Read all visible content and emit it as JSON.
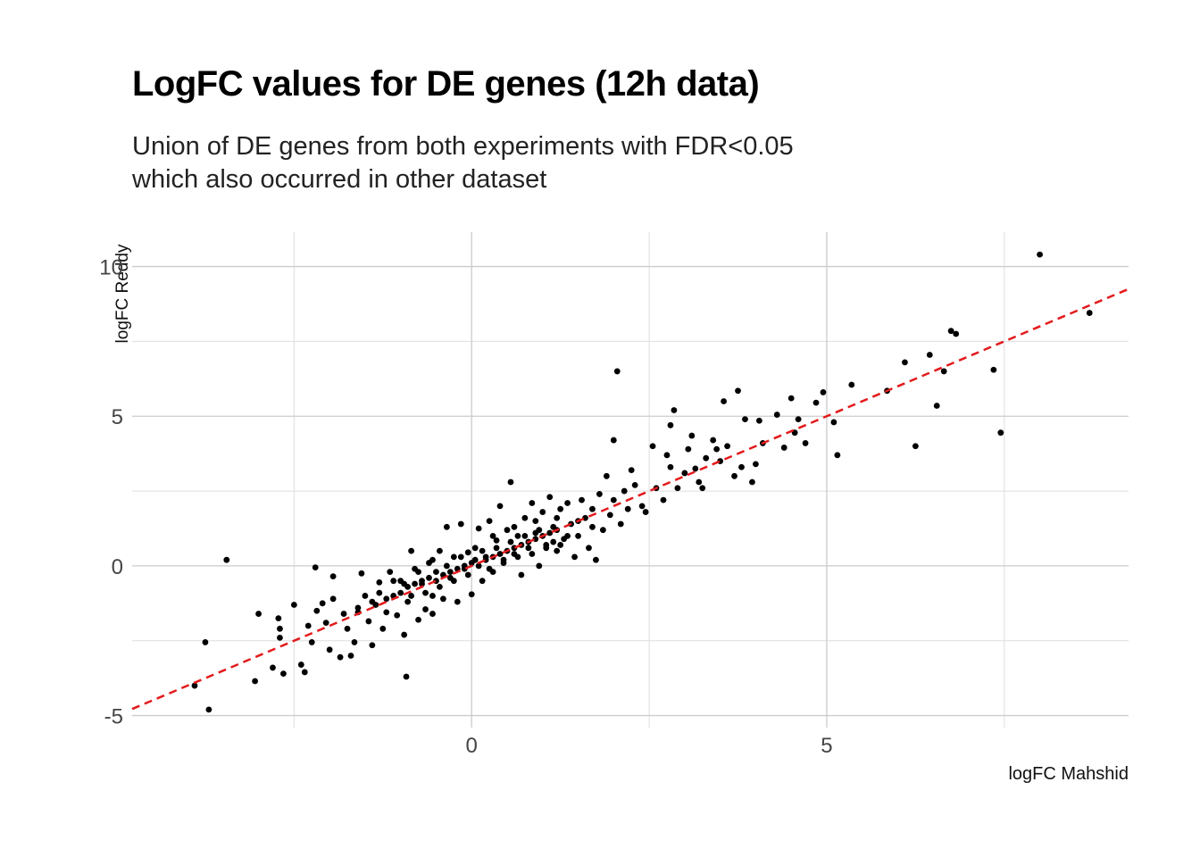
{
  "chart_data": {
    "type": "scatter",
    "title": "LogFC values for DE genes (12h data)",
    "subtitle": [
      "Union of DE genes from both experiments with FDR<0.05",
      "which also occurred in other dataset"
    ],
    "xlabel": "logFC Mahshid",
    "ylabel": "logFC Reddy",
    "xlim": [
      -4.78,
      9.25
    ],
    "ylim": [
      -5.4,
      11.15
    ],
    "x_ticks": [
      0,
      5
    ],
    "x_tick_labels": [
      "0",
      "5"
    ],
    "x_minor_ticks": [
      -2.5,
      2.5,
      7.5
    ],
    "y_ticks": [
      -5,
      0,
      5,
      10
    ],
    "y_tick_labels": [
      "-5",
      "0",
      "5",
      "10"
    ],
    "y_minor_ticks": [
      -2.5,
      2.5,
      7.5
    ],
    "grid": true,
    "legend": "none",
    "reference_line": {
      "slope": 1,
      "intercept": 0,
      "style": "dashed",
      "color": "#e31a1c"
    },
    "point_color": "#000000",
    "points": [
      [
        -3.9,
        -4.0
      ],
      [
        -3.75,
        -2.55
      ],
      [
        -3.7,
        -4.8
      ],
      [
        -3.45,
        0.2
      ],
      [
        -3.05,
        -3.85
      ],
      [
        -3.0,
        -1.6
      ],
      [
        -2.8,
        -3.4
      ],
      [
        -2.72,
        -1.75
      ],
      [
        -2.7,
        -2.1
      ],
      [
        -2.7,
        -2.4
      ],
      [
        -2.65,
        -3.6
      ],
      [
        -2.5,
        -1.3
      ],
      [
        -2.4,
        -3.3
      ],
      [
        -2.35,
        -3.55
      ],
      [
        -2.3,
        -2.0
      ],
      [
        -2.25,
        -2.55
      ],
      [
        -2.2,
        -0.05
      ],
      [
        -2.18,
        -1.5
      ],
      [
        -2.1,
        -1.25
      ],
      [
        -2.05,
        -1.9
      ],
      [
        -2.0,
        -2.8
      ],
      [
        -1.95,
        -1.1
      ],
      [
        -1.95,
        -0.35
      ],
      [
        -1.85,
        -3.05
      ],
      [
        -1.75,
        -2.1
      ],
      [
        -1.7,
        -3.0
      ],
      [
        -1.65,
        -2.55
      ],
      [
        -1.6,
        -1.55
      ],
      [
        -1.55,
        -0.25
      ],
      [
        -1.5,
        -1.0
      ],
      [
        -1.45,
        -1.85
      ],
      [
        -1.4,
        -2.65
      ],
      [
        -1.35,
        -1.3
      ],
      [
        -1.3,
        -0.55
      ],
      [
        -1.25,
        -2.1
      ],
      [
        -1.2,
        -1.55
      ],
      [
        -1.15,
        -0.2
      ],
      [
        -1.1,
        -1.0
      ],
      [
        -1.05,
        -1.65
      ],
      [
        -1.0,
        -0.5
      ],
      [
        -0.95,
        -2.3
      ],
      [
        -0.92,
        -3.7
      ],
      [
        -0.9,
        -1.2
      ],
      [
        -0.85,
        0.5
      ],
      [
        -0.8,
        -0.1
      ],
      [
        -0.75,
        -1.8
      ],
      [
        -0.7,
        -0.6
      ],
      [
        -0.65,
        -1.45
      ],
      [
        -0.6,
        0.1
      ],
      [
        -0.55,
        -1.6
      ],
      [
        -0.5,
        -0.2
      ],
      [
        -0.45,
        0.5
      ],
      [
        -0.4,
        -1.1
      ],
      [
        -0.35,
        1.3
      ],
      [
        -0.3,
        -0.4
      ],
      [
        -0.25,
        0.3
      ],
      [
        -0.2,
        -1.2
      ],
      [
        -0.15,
        1.4
      ],
      [
        -0.1,
        -0.1
      ],
      [
        -0.05,
        0.45
      ],
      [
        0.0,
        -0.95
      ],
      [
        0.05,
        0.6
      ],
      [
        0.1,
        1.25
      ],
      [
        0.15,
        -0.5
      ],
      [
        0.2,
        0.3
      ],
      [
        0.25,
        1.5
      ],
      [
        0.3,
        -0.2
      ],
      [
        0.35,
        0.85
      ],
      [
        0.4,
        2.0
      ],
      [
        0.45,
        0.1
      ],
      [
        0.5,
        1.2
      ],
      [
        0.55,
        2.8
      ],
      [
        0.6,
        0.4
      ],
      [
        0.65,
        1.0
      ],
      [
        0.7,
        -0.3
      ],
      [
        0.75,
        1.6
      ],
      [
        0.8,
        0.6
      ],
      [
        0.85,
        2.1
      ],
      [
        0.9,
        1.1
      ],
      [
        0.95,
        0.0
      ],
      [
        1.0,
        1.8
      ],
      [
        1.05,
        0.7
      ],
      [
        1.1,
        2.3
      ],
      [
        1.15,
        1.3
      ],
      [
        1.2,
        0.5
      ],
      [
        1.25,
        1.9
      ],
      [
        1.3,
        0.9
      ],
      [
        1.35,
        2.1
      ],
      [
        1.4,
        1.4
      ],
      [
        1.45,
        0.3
      ],
      [
        1.5,
        1.0
      ],
      [
        1.55,
        2.2
      ],
      [
        1.6,
        1.6
      ],
      [
        1.65,
        0.6
      ],
      [
        1.7,
        1.9
      ],
      [
        1.75,
        0.2
      ],
      [
        1.8,
        2.4
      ],
      [
        1.85,
        1.2
      ],
      [
        1.9,
        3.0
      ],
      [
        1.95,
        1.7
      ],
      [
        2.0,
        4.2
      ],
      [
        2.0,
        2.2
      ],
      [
        2.05,
        6.5
      ],
      [
        2.1,
        1.4
      ],
      [
        2.15,
        2.5
      ],
      [
        2.2,
        1.9
      ],
      [
        2.25,
        3.2
      ],
      [
        2.3,
        2.7
      ],
      [
        2.4,
        2.0
      ],
      [
        2.45,
        1.8
      ],
      [
        2.55,
        4.0
      ],
      [
        2.6,
        2.6
      ],
      [
        2.7,
        2.2
      ],
      [
        2.75,
        3.7
      ],
      [
        2.8,
        4.7
      ],
      [
        2.8,
        3.3
      ],
      [
        2.85,
        5.2
      ],
      [
        2.9,
        2.6
      ],
      [
        3.0,
        3.1
      ],
      [
        3.05,
        3.9
      ],
      [
        3.1,
        4.35
      ],
      [
        3.15,
        3.25
      ],
      [
        3.2,
        2.8
      ],
      [
        3.25,
        2.6
      ],
      [
        3.3,
        3.6
      ],
      [
        3.4,
        4.2
      ],
      [
        3.45,
        3.9
      ],
      [
        3.5,
        3.5
      ],
      [
        3.55,
        5.5
      ],
      [
        3.6,
        4.0
      ],
      [
        3.7,
        3.0
      ],
      [
        3.75,
        5.85
      ],
      [
        3.8,
        3.3
      ],
      [
        3.85,
        4.9
      ],
      [
        3.95,
        2.8
      ],
      [
        4.0,
        3.4
      ],
      [
        4.05,
        4.85
      ],
      [
        4.1,
        4.1
      ],
      [
        4.3,
        5.05
      ],
      [
        4.4,
        3.95
      ],
      [
        4.5,
        5.6
      ],
      [
        4.55,
        4.45
      ],
      [
        4.6,
        4.9
      ],
      [
        4.7,
        4.1
      ],
      [
        4.85,
        5.45
      ],
      [
        4.95,
        5.8
      ],
      [
        5.1,
        4.8
      ],
      [
        5.15,
        3.7
      ],
      [
        5.35,
        6.05
      ],
      [
        5.85,
        5.85
      ],
      [
        6.1,
        6.8
      ],
      [
        6.25,
        4.0
      ],
      [
        6.45,
        7.05
      ],
      [
        6.55,
        5.35
      ],
      [
        6.65,
        6.5
      ],
      [
        6.75,
        7.85
      ],
      [
        6.82,
        7.75
      ],
      [
        7.35,
        6.55
      ],
      [
        7.45,
        4.45
      ],
      [
        8.0,
        10.4
      ],
      [
        8.7,
        8.45
      ],
      [
        -1.0,
        -0.9
      ],
      [
        -0.9,
        -0.7
      ],
      [
        -0.8,
        -0.6
      ],
      [
        -0.7,
        -0.5
      ],
      [
        -0.6,
        -0.4
      ],
      [
        -0.5,
        -0.5
      ],
      [
        -0.4,
        -0.3
      ],
      [
        -0.3,
        -0.2
      ],
      [
        -0.2,
        -0.1
      ],
      [
        -0.1,
        0.0
      ],
      [
        0.0,
        0.1
      ],
      [
        0.1,
        0.0
      ],
      [
        0.2,
        0.2
      ],
      [
        0.3,
        0.3
      ],
      [
        0.4,
        0.4
      ],
      [
        0.5,
        0.5
      ],
      [
        0.6,
        0.6
      ],
      [
        0.7,
        0.7
      ],
      [
        0.8,
        0.8
      ],
      [
        0.9,
        0.9
      ],
      [
        1.0,
        1.0
      ],
      [
        1.1,
        1.1
      ],
      [
        1.2,
        1.2
      ],
      [
        -1.2,
        -1.1
      ],
      [
        -1.4,
        -1.2
      ],
      [
        -1.6,
        -1.4
      ],
      [
        -1.8,
        -1.6
      ],
      [
        -0.95,
        -0.6
      ],
      [
        -0.85,
        -1.0
      ],
      [
        -0.65,
        -0.9
      ],
      [
        -0.45,
        -0.7
      ],
      [
        -0.25,
        -0.5
      ],
      [
        -0.05,
        -0.3
      ],
      [
        0.15,
        0.5
      ],
      [
        0.35,
        0.6
      ],
      [
        0.55,
        0.8
      ],
      [
        0.75,
        1.0
      ],
      [
        0.95,
        1.2
      ],
      [
        1.15,
        0.8
      ],
      [
        1.35,
        1.0
      ],
      [
        -0.55,
        0.2
      ],
      [
        -0.35,
        0.0
      ],
      [
        -0.15,
        0.3
      ],
      [
        0.05,
        0.2
      ],
      [
        0.25,
        -0.1
      ],
      [
        0.45,
        0.2
      ],
      [
        0.65,
        0.3
      ],
      [
        0.85,
        0.4
      ],
      [
        1.05,
        0.6
      ],
      [
        1.25,
        0.7
      ],
      [
        -1.3,
        -0.9
      ],
      [
        -1.1,
        -0.5
      ],
      [
        -0.75,
        -0.2
      ],
      [
        -0.55,
        -1.0
      ],
      [
        0.3,
        1.0
      ],
      [
        0.6,
        1.3
      ],
      [
        0.9,
        1.5
      ],
      [
        1.2,
        1.6
      ],
      [
        1.5,
        1.5
      ],
      [
        1.7,
        1.3
      ]
    ]
  }
}
